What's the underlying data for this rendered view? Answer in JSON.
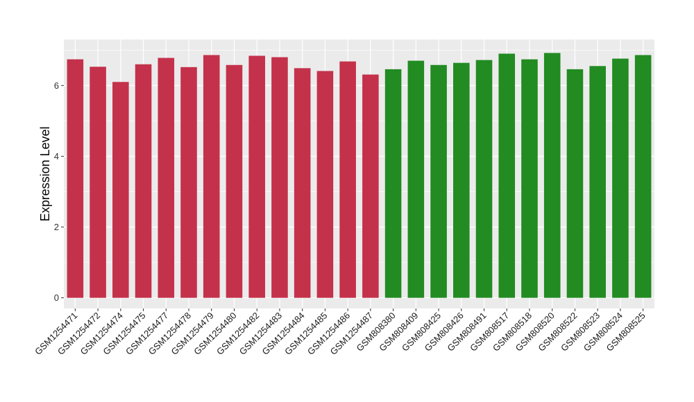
{
  "chart_data": {
    "type": "bar",
    "title": "",
    "xlabel": "",
    "ylabel": "Expression Level",
    "ylim": [
      -0.3,
      7.3
    ],
    "yticks": [
      0,
      2,
      4,
      6
    ],
    "yticks_labels": [
      "0",
      "2",
      "4",
      "6"
    ],
    "grid": true,
    "legend": "none",
    "colors": {
      "group_a": "#C4314B",
      "group_b": "#228B22",
      "panel": "#EBEBEB",
      "gridline": "#FFFFFF"
    },
    "categories": [
      "GSM1254471",
      "GSM1254472",
      "GSM1254474",
      "GSM1254475",
      "GSM1254477",
      "GSM1254478",
      "GSM1254479",
      "GSM1254480",
      "GSM1254482",
      "GSM1254483",
      "GSM1254484",
      "GSM1254485",
      "GSM1254486",
      "GSM1254487",
      "GSM808380",
      "GSM808409",
      "GSM808425",
      "GSM808426",
      "GSM808491",
      "GSM808517",
      "GSM808518",
      "GSM808520",
      "GSM808522",
      "GSM808523",
      "GSM808524",
      "GSM808525"
    ],
    "values": [
      6.74,
      6.53,
      6.1,
      6.6,
      6.78,
      6.52,
      6.86,
      6.58,
      6.84,
      6.8,
      6.49,
      6.41,
      6.68,
      6.31,
      6.46,
      6.7,
      6.58,
      6.64,
      6.72,
      6.9,
      6.74,
      6.92,
      6.46,
      6.55,
      6.76,
      6.86
    ],
    "bar_groups": [
      "group_a",
      "group_a",
      "group_a",
      "group_a",
      "group_a",
      "group_a",
      "group_a",
      "group_a",
      "group_a",
      "group_a",
      "group_a",
      "group_a",
      "group_a",
      "group_a",
      "group_b",
      "group_b",
      "group_b",
      "group_b",
      "group_b",
      "group_b",
      "group_b",
      "group_b",
      "group_b",
      "group_b",
      "group_b",
      "group_b"
    ]
  }
}
